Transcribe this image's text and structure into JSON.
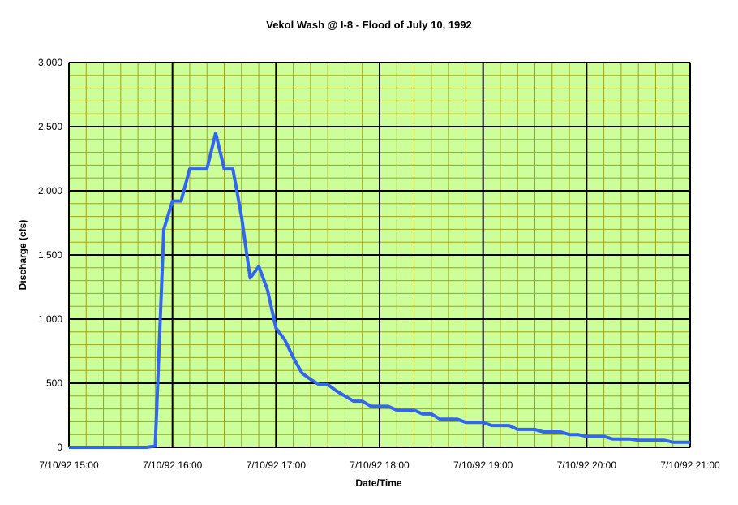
{
  "chart_data": {
    "type": "line",
    "title": "Vekol Wash @ I-8 - Flood of July 10, 1992",
    "xlabel": "Date/Time",
    "ylabel": "Discharge (cfs)",
    "xlim": [
      "7/10/92 15:00",
      "7/10/92 21:00"
    ],
    "ylim": [
      0,
      3000
    ],
    "x_ticks": [
      "7/10/92 15:00",
      "7/10/92 16:00",
      "7/10/92 17:00",
      "7/10/92 18:00",
      "7/10/92 19:00",
      "7/10/92 20:00",
      "7/10/92 21:00"
    ],
    "y_ticks": [
      "0",
      "500",
      "1,000",
      "1,500",
      "2,000",
      "2,500",
      "3,000"
    ],
    "grid": true,
    "legend": "none",
    "colors": {
      "line": "#3366ee",
      "plot_background": "#ccff99",
      "minor_grid": "#9aa51a",
      "major_grid": "#000000"
    },
    "series": [
      {
        "color": "#3366ee",
        "points": [
          [
            "7/10/92 15:00",
            0
          ],
          [
            "7/10/92 15:45",
            0
          ],
          [
            "7/10/92 15:50",
            10
          ],
          [
            "7/10/92 15:55",
            1700
          ],
          [
            "7/10/92 16:00",
            1920
          ],
          [
            "7/10/92 16:05",
            1920
          ],
          [
            "7/10/92 16:10",
            2170
          ],
          [
            "7/10/92 16:15",
            2170
          ],
          [
            "7/10/92 16:20",
            2170
          ],
          [
            "7/10/92 16:25",
            2450
          ],
          [
            "7/10/92 16:30",
            2170
          ],
          [
            "7/10/92 16:35",
            2170
          ],
          [
            "7/10/92 16:40",
            1800
          ],
          [
            "7/10/92 16:45",
            1320
          ],
          [
            "7/10/92 16:50",
            1410
          ],
          [
            "7/10/92 16:55",
            1230
          ],
          [
            "7/10/92 17:00",
            930
          ],
          [
            "7/10/92 17:05",
            840
          ],
          [
            "7/10/92 17:10",
            700
          ],
          [
            "7/10/92 17:15",
            580
          ],
          [
            "7/10/92 17:20",
            530
          ],
          [
            "7/10/92 17:25",
            490
          ],
          [
            "7/10/92 17:30",
            490
          ],
          [
            "7/10/92 17:35",
            440
          ],
          [
            "7/10/92 17:40",
            400
          ],
          [
            "7/10/92 17:45",
            360
          ],
          [
            "7/10/92 17:50",
            360
          ],
          [
            "7/10/92 17:55",
            320
          ],
          [
            "7/10/92 18:05",
            320
          ],
          [
            "7/10/92 18:10",
            290
          ],
          [
            "7/10/92 18:20",
            290
          ],
          [
            "7/10/92 18:25",
            260
          ],
          [
            "7/10/92 18:30",
            260
          ],
          [
            "7/10/92 18:35",
            220
          ],
          [
            "7/10/92 18:45",
            220
          ],
          [
            "7/10/92 18:50",
            195
          ],
          [
            "7/10/92 19:00",
            195
          ],
          [
            "7/10/92 19:05",
            170
          ],
          [
            "7/10/92 19:15",
            170
          ],
          [
            "7/10/92 19:20",
            140
          ],
          [
            "7/10/92 19:30",
            140
          ],
          [
            "7/10/92 19:35",
            120
          ],
          [
            "7/10/92 19:45",
            120
          ],
          [
            "7/10/92 19:50",
            100
          ],
          [
            "7/10/92 19:55",
            100
          ],
          [
            "7/10/92 20:00",
            85
          ],
          [
            "7/10/92 20:10",
            85
          ],
          [
            "7/10/92 20:15",
            65
          ],
          [
            "7/10/92 20:25",
            65
          ],
          [
            "7/10/92 20:30",
            55
          ],
          [
            "7/10/92 20:45",
            55
          ],
          [
            "7/10/92 20:50",
            40
          ],
          [
            "7/10/92 21:00",
            40
          ]
        ]
      }
    ]
  }
}
